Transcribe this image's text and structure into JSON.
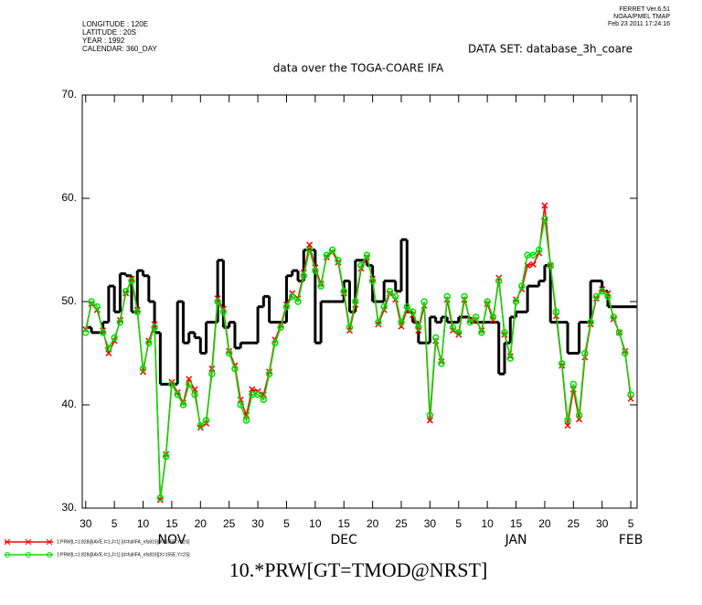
{
  "chart_data": {
    "type": "line",
    "header": [
      "LONGITUDE : 120E",
      "LATITUDE : 20S",
      "YEAR : 1992",
      "CALENDAR: 360_DAY"
    ],
    "stamp": [
      "FERRET  Ver.6.51",
      "NOAA/PMEL TMAP",
      "Feb 23 2011 17:24:16"
    ],
    "dataset": "DATA SET: database_3h_coare",
    "title": "data over the TOGA-COARE IFA",
    "xlabel": "10.*PRW[GT=TMOD@NRST]",
    "xlim": [
      -0.6,
      96.1
    ],
    "ylim": [
      30,
      70
    ],
    "yticks": [
      {
        "value": 30,
        "label": "30."
      },
      {
        "value": 40,
        "label": "40."
      },
      {
        "value": 50,
        "label": "50."
      },
      {
        "value": 60,
        "label": "60."
      },
      {
        "value": 70,
        "label": "70."
      }
    ],
    "xticks": [
      {
        "value": 0,
        "label": "30"
      },
      {
        "value": 5,
        "label": "5"
      },
      {
        "value": 10,
        "label": "10"
      },
      {
        "value": 15,
        "label": "15"
      },
      {
        "value": 20,
        "label": "20"
      },
      {
        "value": 25,
        "label": "25"
      },
      {
        "value": 30,
        "label": "30"
      },
      {
        "value": 35,
        "label": "5"
      },
      {
        "value": 40,
        "label": "10"
      },
      {
        "value": 45,
        "label": "15"
      },
      {
        "value": 50,
        "label": "20"
      },
      {
        "value": 55,
        "label": "25"
      },
      {
        "value": 60,
        "label": "30"
      },
      {
        "value": 65,
        "label": "5"
      },
      {
        "value": 70,
        "label": "10"
      },
      {
        "value": 75,
        "label": "15"
      },
      {
        "value": 80,
        "label": "20"
      },
      {
        "value": 85,
        "label": "25"
      },
      {
        "value": 90,
        "label": "30"
      },
      {
        "value": 95,
        "label": "5"
      }
    ],
    "month_labels": [
      {
        "value": 15,
        "label": "NOV"
      },
      {
        "value": 45,
        "label": "DEC"
      },
      {
        "value": 75,
        "label": "JAN"
      },
      {
        "value": 95,
        "label": "FEB"
      }
    ],
    "x": [
      0,
      1,
      2,
      3,
      4,
      5,
      6,
      7,
      8,
      9,
      10,
      11,
      12,
      13,
      14,
      15,
      16,
      17,
      18,
      19,
      20,
      21,
      22,
      23,
      24,
      25,
      26,
      27,
      28,
      29,
      30,
      31,
      32,
      33,
      34,
      35,
      36,
      37,
      38,
      39,
      40,
      41,
      42,
      43,
      44,
      45,
      46,
      47,
      48,
      49,
      50,
      51,
      52,
      53,
      54,
      55,
      56,
      57,
      58,
      59,
      60,
      61,
      62,
      63,
      64,
      65,
      66,
      67,
      68,
      69,
      70,
      71,
      72,
      73,
      74,
      75,
      76,
      77,
      78,
      79,
      80,
      81,
      82,
      83,
      84,
      85,
      86,
      87,
      88,
      89,
      90,
      91,
      92,
      93,
      94,
      95
    ],
    "series": [
      {
        "color": "#000000",
        "step": true,
        "x": [
          0,
          1,
          3,
          4,
          5,
          6,
          7,
          8,
          9,
          10,
          11,
          12,
          13,
          15,
          16,
          17,
          18,
          19,
          20,
          21,
          23,
          24,
          25,
          26,
          27,
          29,
          30,
          31,
          32,
          33,
          35,
          36,
          37,
          38,
          40,
          41,
          43,
          45,
          46,
          47,
          49,
          50,
          52,
          54,
          55,
          56,
          57,
          58,
          60,
          61,
          62,
          63,
          65,
          67,
          69,
          71,
          72,
          73,
          74,
          75,
          77,
          79,
          80,
          81,
          83,
          84,
          85,
          86,
          88,
          89,
          90,
          91,
          93,
          95
        ],
        "values": [
          47.5,
          47,
          48,
          51.5,
          49,
          52.7,
          52.5,
          49,
          53,
          52.5,
          50,
          47,
          42,
          42,
          50,
          46,
          47,
          46.5,
          45,
          48,
          54,
          47.5,
          48,
          45.5,
          46,
          46,
          49.5,
          50.5,
          48,
          48,
          52.5,
          53,
          52,
          55,
          46,
          50,
          50,
          52,
          49,
          54,
          53.5,
          50,
          52,
          51,
          56,
          49,
          48,
          46,
          48.5,
          48,
          48.5,
          48,
          48.5,
          48,
          48,
          48,
          43,
          46,
          48.5,
          49,
          51.5,
          52,
          53.5,
          48,
          48,
          45,
          45,
          48,
          52,
          52,
          51,
          49.5,
          49.5,
          49.5
        ]
      },
      {
        "name": "1:PRW[L=1:828@AVE,I=1,J=1] [d=fullIFA_nfs815][X=155E,Y=2S]",
        "color": "#ff0000",
        "marker": "x",
        "values": [
          47.3,
          49.8,
          49.2,
          47.2,
          45,
          46.2,
          48.2,
          50.8,
          52.2,
          49.2,
          43.2,
          46.2,
          47.8,
          30.8,
          35.2,
          42.2,
          41.2,
          40.2,
          42.5,
          41.5,
          37.8,
          38.2,
          43.5,
          50.3,
          49.3,
          45.2,
          43.8,
          40.5,
          39,
          41.5,
          41.3,
          41,
          43.2,
          46.3,
          47.7,
          49.7,
          50.8,
          50.3,
          52.8,
          55.5,
          53.3,
          51.7,
          54.3,
          54.8,
          53.8,
          50.8,
          47.2,
          49.7,
          53.2,
          54.3,
          52.2,
          47.8,
          49.2,
          50.8,
          50.2,
          47.6,
          49.2,
          48.7,
          47.2,
          49.6,
          38.5,
          46.2,
          44.2,
          50.2,
          47.2,
          46.8,
          50.2,
          48.2,
          48.2,
          47.2,
          49.8,
          48.2,
          52.3,
          46.8,
          44.7,
          50.2,
          51.2,
          53.5,
          53.6,
          54.7,
          59.3,
          53.5,
          48.6,
          43.8,
          38,
          41.5,
          38.6,
          44.6,
          47.8,
          50.3,
          51.2,
          50.8,
          48.3,
          47,
          45.2,
          40.6
        ]
      },
      {
        "name": "1:PRW[L=1:828@AVE,I=1,J=1] [d=fullIFA_nfs816][X=155E,Y=2S]",
        "color": "#00e000",
        "marker": "o",
        "values": [
          47,
          50,
          49.5,
          47,
          45.5,
          46.5,
          48,
          51,
          52,
          49,
          43.5,
          46,
          47.5,
          31,
          35,
          42,
          41,
          40,
          42,
          41,
          38,
          38.5,
          43,
          50,
          49,
          45,
          43.5,
          40,
          38.5,
          41,
          41,
          40.5,
          43,
          46,
          47.5,
          49.5,
          50.5,
          50,
          52.5,
          55,
          53,
          51.5,
          54.5,
          55,
          54,
          51,
          47.5,
          50,
          53.5,
          54.5,
          52,
          48,
          49.5,
          51,
          50.5,
          48,
          49.5,
          49,
          47.5,
          50,
          39,
          46.5,
          44,
          50.5,
          47.5,
          47,
          50.5,
          48,
          48.5,
          47,
          50,
          48.5,
          52,
          47,
          44.5,
          50,
          51.5,
          54.5,
          54.5,
          55,
          58,
          53.5,
          49,
          44,
          38.5,
          42,
          39,
          45,
          48,
          50.5,
          51,
          50.5,
          48.5,
          47,
          45,
          41
        ]
      }
    ]
  }
}
